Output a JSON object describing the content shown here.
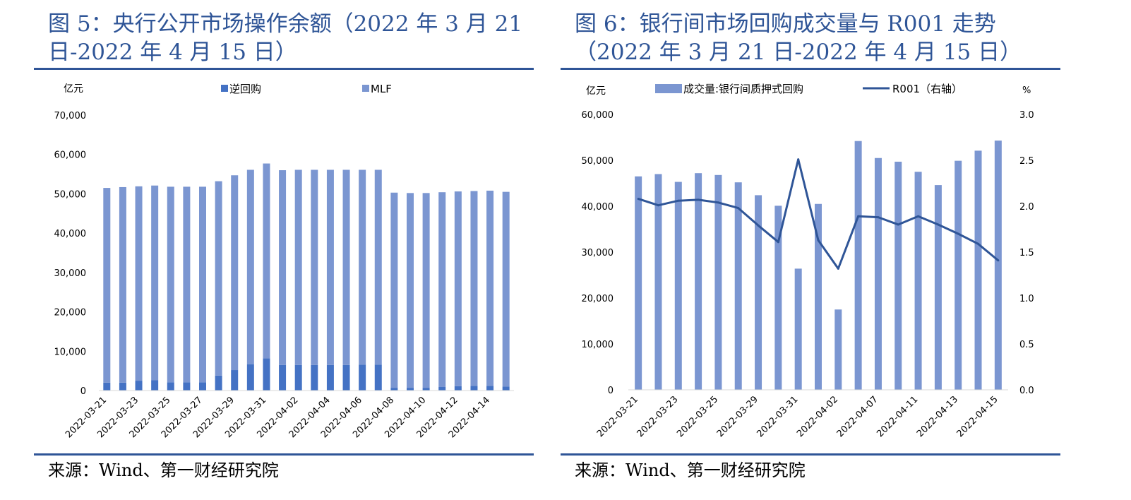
{
  "left": {
    "title_line1": "图 5：央行公开市场操作余额（2022 年 3 月 21",
    "title_line2": "日-2022 年 4 月 15 日）",
    "source": "来源：Wind、第一财经研究院"
  },
  "right": {
    "title_line1": "图 6：银行间市场回购成交量与 R001 走势",
    "title_line2": "（2022 年 3 月 21 日-2022 年 4 月 15 日）",
    "source": "来源：Wind、第一财经研究院"
  },
  "colors": {
    "title": "#2f5597",
    "series_dark": "#4472c4",
    "series_light": "#7b96d1",
    "line": "#2f5597"
  },
  "chart_data": [
    {
      "type": "bar",
      "stacked": true,
      "y_unit_label": "亿元",
      "ylim": [
        0,
        70000
      ],
      "yticks": [
        "0",
        "10,000",
        "20,000",
        "30,000",
        "40,000",
        "50,000",
        "60,000",
        "70,000"
      ],
      "categories": [
        "2022-03-21",
        "2022-03-22",
        "2022-03-23",
        "2022-03-24",
        "2022-03-25",
        "2022-03-26",
        "2022-03-27",
        "2022-03-28",
        "2022-03-29",
        "2022-03-30",
        "2022-03-31",
        "2022-04-01",
        "2022-04-02",
        "2022-04-03",
        "2022-04-04",
        "2022-04-05",
        "2022-04-06",
        "2022-04-07",
        "2022-04-08",
        "2022-04-09",
        "2022-04-10",
        "2022-04-11",
        "2022-04-12",
        "2022-04-13",
        "2022-04-14",
        "2022-04-15"
      ],
      "shown_xticks": [
        "2022-03-21",
        "2022-03-23",
        "2022-03-25",
        "2022-03-27",
        "2022-03-29",
        "2022-03-31",
        "2022-04-02",
        "2022-04-04",
        "2022-04-06",
        "2022-04-08",
        "2022-04-10",
        "2022-04-12",
        "2022-04-14"
      ],
      "series": [
        {
          "name": "逆回购",
          "values": [
            2000,
            2000,
            2500,
            2600,
            2100,
            2100,
            2100,
            3800,
            5200,
            6700,
            8200,
            6500,
            6500,
            6500,
            6500,
            6500,
            6600,
            6600,
            700,
            700,
            700,
            900,
            1100,
            1200,
            1200,
            1000
          ]
        },
        {
          "name": "MLF",
          "values": [
            49500,
            49700,
            49400,
            49500,
            49700,
            49700,
            49700,
            49400,
            49500,
            49400,
            49500,
            49500,
            49600,
            49600,
            49600,
            49600,
            49500,
            49500,
            49600,
            49500,
            49500,
            49500,
            49500,
            49500,
            49600,
            49500
          ]
        }
      ],
      "legend_position": "top-center",
      "grid": false
    },
    {
      "type": "bar+line",
      "y_unit_label": "亿元",
      "y2_unit_label": "%",
      "ylim": [
        0,
        60000
      ],
      "y2lim": [
        0,
        3.0
      ],
      "yticks": [
        "0",
        "10,000",
        "20,000",
        "30,000",
        "40,000",
        "50,000",
        "60,000"
      ],
      "y2ticks": [
        "0.0",
        "0.5",
        "1.0",
        "1.5",
        "2.0",
        "2.5",
        "3.0"
      ],
      "categories": [
        "2022-03-21",
        "2022-03-22",
        "2022-03-23",
        "2022-03-24",
        "2022-03-25",
        "2022-03-28",
        "2022-03-29",
        "2022-03-30",
        "2022-03-31",
        "2022-04-01",
        "2022-04-02",
        "2022-04-06",
        "2022-04-07",
        "2022-04-08",
        "2022-04-11",
        "2022-04-12",
        "2022-04-13",
        "2022-04-14",
        "2022-04-15"
      ],
      "shown_xticks": [
        "2022-03-21",
        "2022-03-23",
        "2022-03-25",
        "2022-03-29",
        "2022-03-31",
        "2022-04-02",
        "2022-04-07",
        "2022-04-11",
        "2022-04-13",
        "2022-04-15"
      ],
      "series": [
        {
          "name": "成交量:银行间质押式回购",
          "type": "bar",
          "axis": "left",
          "values": [
            46500,
            47000,
            45300,
            47200,
            46800,
            45200,
            42400,
            40100,
            26400,
            40500,
            17500,
            54200,
            50500,
            49700,
            47500,
            44600,
            49900,
            52100,
            54300
          ]
        },
        {
          "name": "R001（右轴）",
          "type": "line",
          "axis": "right",
          "values": [
            2.08,
            2.01,
            2.06,
            2.07,
            2.04,
            1.98,
            1.79,
            1.61,
            2.51,
            1.63,
            1.32,
            1.89,
            1.88,
            1.8,
            1.89,
            1.8,
            1.7,
            1.59,
            1.41
          ]
        }
      ],
      "legend_position": "top-center",
      "grid": false
    }
  ]
}
